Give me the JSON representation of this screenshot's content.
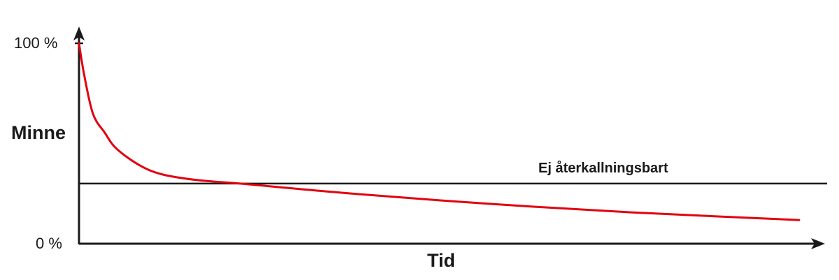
{
  "chart_data": {
    "type": "line",
    "title": "",
    "xlabel": "Tid",
    "ylabel": "Minne",
    "ytick_labels": [
      "100 %",
      "0 %"
    ],
    "ylim": [
      0,
      100
    ],
    "xlim": [
      0,
      100
    ],
    "grid": false,
    "series": [
      {
        "color": "#e3000f",
        "x": [
          0,
          0.7,
          1.9,
          3.5,
          5.1,
          8.3,
          11.4,
          16.2,
          21.9,
          36.8,
          55.8,
          74.8,
          97.9
        ],
        "y": [
          100,
          84.3,
          64.8,
          55.4,
          47.4,
          39.0,
          34.5,
          31.7,
          30.0,
          25.1,
          19.9,
          15.7,
          11.8
        ]
      }
    ],
    "threshold": {
      "label": "Ej återkallningsbart",
      "y": 30,
      "color": "#1a1a1a"
    },
    "axis_color": "#1a1a1a"
  }
}
